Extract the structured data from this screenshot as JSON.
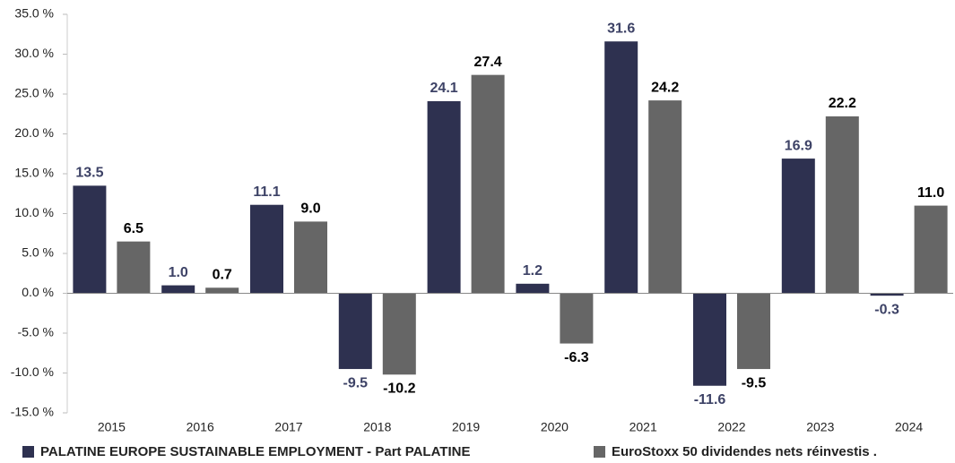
{
  "chart_data": {
    "type": "bar",
    "categories": [
      "2015",
      "2016",
      "2017",
      "2018",
      "2019",
      "2020",
      "2021",
      "2022",
      "2023",
      "2024"
    ],
    "series": [
      {
        "name": "PALATINE EUROPE SUSTAINABLE EMPLOYMENT - Part PALATINE",
        "color": "#2e3150",
        "label_color": "#3d4266",
        "values": [
          13.5,
          1.0,
          11.1,
          -9.5,
          24.1,
          1.2,
          31.6,
          -11.6,
          16.9,
          -0.3
        ],
        "value_labels": [
          "13.5",
          "1.0",
          "11.1",
          "-9.5",
          "24.1",
          "1.2",
          "31.6",
          "-11.6",
          "16.9",
          "-0.3"
        ]
      },
      {
        "name": "EuroStoxx 50 dividendes nets réinvestis .",
        "color": "#666666",
        "label_color": "#000000",
        "values": [
          6.5,
          0.7,
          9.0,
          -10.2,
          27.4,
          -6.3,
          24.2,
          -9.5,
          22.2,
          11.0
        ],
        "value_labels": [
          "6.5",
          "0.7",
          "9.0",
          "-10.2",
          "27.4",
          "-6.3",
          "24.2",
          "-9.5",
          "22.2",
          "11.0"
        ]
      }
    ],
    "ylim": [
      -15,
      35
    ],
    "yticks": [
      {
        "value": -15,
        "label": "-15.0 %"
      },
      {
        "value": -10,
        "label": "-10.0 %"
      },
      {
        "value": -5,
        "label": "-5.0 %"
      },
      {
        "value": 0,
        "label": "0.0 %"
      },
      {
        "value": 5,
        "label": "5.0 %"
      },
      {
        "value": 10,
        "label": "10.0 %"
      },
      {
        "value": 15,
        "label": "15.0 %"
      },
      {
        "value": 20,
        "label": "20.0 %"
      },
      {
        "value": 25,
        "label": "25.0 %"
      },
      {
        "value": 30,
        "label": "30.0 %"
      },
      {
        "value": 35,
        "label": "35.0 %"
      }
    ],
    "legend": "bottom"
  }
}
